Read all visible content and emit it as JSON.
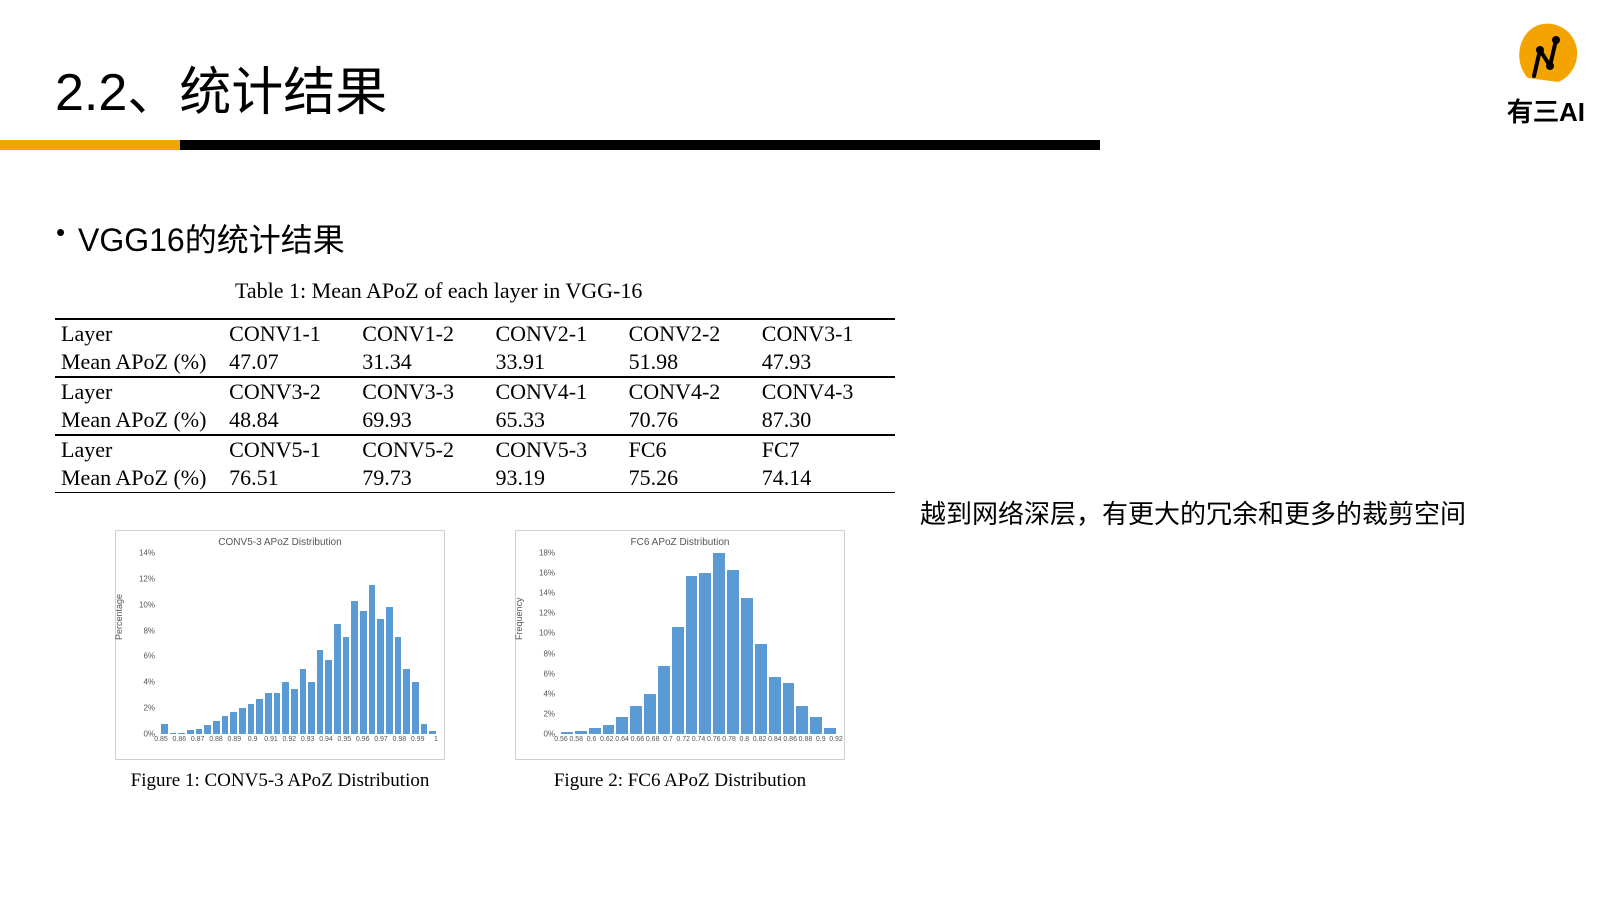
{
  "title": "2.2、统计结果",
  "logo_text": "有三AI",
  "bullet": "VGG16的统计结果",
  "table_caption": "Table 1: Mean APoZ of each layer in VGG-16",
  "table": {
    "row_labels": [
      "Layer",
      "Mean APoZ (%)"
    ],
    "blocks": [
      {
        "layers": [
          "CONV1-1",
          "CONV1-2",
          "CONV2-1",
          "CONV2-2",
          "CONV3-1"
        ],
        "values": [
          "47.07",
          "31.34",
          "33.91",
          "51.98",
          "47.93"
        ]
      },
      {
        "layers": [
          "CONV3-2",
          "CONV3-3",
          "CONV4-1",
          "CONV4-2",
          "CONV4-3"
        ],
        "values": [
          "48.84",
          "69.93",
          "65.33",
          "70.76",
          "87.30"
        ]
      },
      {
        "layers": [
          "CONV5-1",
          "CONV5-2",
          "CONV5-3",
          "FC6",
          "FC7"
        ],
        "values": [
          "76.51",
          "79.73",
          "93.19",
          "75.26",
          "74.14"
        ]
      }
    ]
  },
  "charts": [
    {
      "type": "bar",
      "title": "CONV5-3 APoZ Distribution",
      "caption": "Figure 1: CONV5-3 APoZ Distribution",
      "ylabel": "Percentage",
      "bar_color": "#5b9bd5",
      "ylim_max": 14,
      "y_ticks": [
        "0%",
        "2%",
        "4%",
        "6%",
        "8%",
        "10%",
        "12%",
        "14%"
      ],
      "x_ticks": [
        "0.85",
        "0.86",
        "0.87",
        "0.88",
        "0.89",
        "0.9",
        "0.91",
        "0.92",
        "0.93",
        "0.94",
        "0.95",
        "0.96",
        "0.97",
        "0.98",
        "0.99",
        "1"
      ],
      "values": [
        0.8,
        0.1,
        0.1,
        0.3,
        0.4,
        0.7,
        1.0,
        1.4,
        1.7,
        2.0,
        2.3,
        2.7,
        3.2,
        3.2,
        4.0,
        3.5,
        5.0,
        4.0,
        6.5,
        5.7,
        8.5,
        7.5,
        10.3,
        9.5,
        11.5,
        8.9,
        9.8,
        7.5,
        5.0,
        4.0,
        0.8,
        0.2
      ]
    },
    {
      "type": "bar",
      "title": "FC6 APoZ Distribution",
      "caption": "Figure 2: FC6 APoZ Distribution",
      "ylabel": "Frequency",
      "bar_color": "#5b9bd5",
      "ylim_max": 16,
      "y_ticks": [
        "0%",
        "2%",
        "4%",
        "6%",
        "8%",
        "10%",
        "12%",
        "14%",
        "16%",
        "18%"
      ],
      "x_ticks": [
        "0.56",
        "0.58",
        "0.6",
        "0.62",
        "0.64",
        "0.66",
        "0.68",
        "0.7",
        "0.72",
        "0.74",
        "0.76",
        "0.78",
        "0.8",
        "0.82",
        "0.84",
        "0.86",
        "0.88",
        "0.9",
        "0.92"
      ],
      "values": [
        0.2,
        0.3,
        0.5,
        0.8,
        1.5,
        2.5,
        3.5,
        6.0,
        9.5,
        14.0,
        14.2,
        16.0,
        14.5,
        12.0,
        8.0,
        5.0,
        4.5,
        2.5,
        1.5,
        0.5
      ]
    }
  ],
  "side_note": "越到网络深层，有更大的冗余和更多的裁剪空间",
  "colors": {
    "accent": "#f4a400",
    "bar": "#5b9bd5",
    "border": "#d0d0d0"
  }
}
